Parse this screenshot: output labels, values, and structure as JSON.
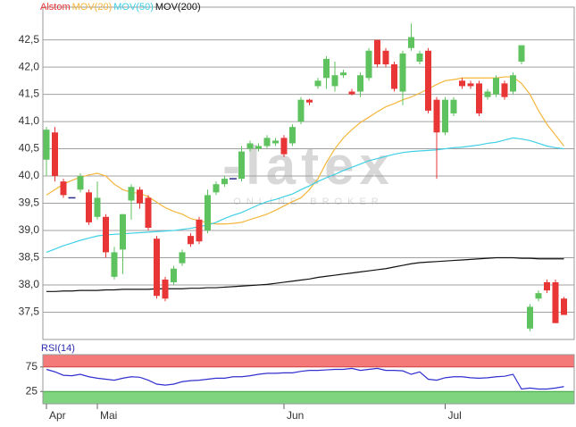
{
  "chart_data": [
    {
      "type": "candlestick",
      "name": "Alstom",
      "watermark": "-latex",
      "watermark_sub": "ONLINE BROKER",
      "up_color": "#5ec35e",
      "down_color": "#e83535",
      "doji_color": "#2a2a8a",
      "name_color": "#e83535",
      "categories": [
        "Apr",
        null,
        null,
        null,
        null,
        null,
        "Mai",
        null,
        null,
        null,
        null,
        null,
        null,
        null,
        null,
        null,
        null,
        null,
        null,
        null,
        null,
        null,
        null,
        null,
        null,
        null,
        null,
        null,
        "Jun",
        null,
        null,
        null,
        null,
        null,
        null,
        null,
        null,
        null,
        null,
        null,
        null,
        null,
        null,
        null,
        null,
        null,
        null,
        "Jul",
        null,
        null,
        null,
        null,
        null,
        null,
        null,
        null,
        null,
        null,
        null,
        null,
        null,
        null
      ],
      "open": [
        40.3,
        40.8,
        39.9,
        39.6,
        39.75,
        39.7,
        39.25,
        39.25,
        38.15,
        38.65,
        39.55,
        39.75,
        39.6,
        38.85,
        38.1,
        38.05,
        38.4,
        38.9,
        39.2,
        39.0,
        39.7,
        39.85,
        39.95,
        39.95,
        40.5,
        40.5,
        40.55,
        40.6,
        40.7,
        40.6,
        41.0,
        41.4,
        41.65,
        41.8,
        41.65,
        41.85,
        41.55,
        41.55,
        41.8,
        42.5,
        42.3,
        42.05,
        41.55,
        42.35,
        42.1,
        42.3,
        41.4,
        40.8,
        41.15,
        41.75,
        41.7,
        41.7,
        41.45,
        41.5,
        41.7,
        41.55,
        42.1,
        37.2,
        37.75,
        38.05,
        38.05,
        37.75
      ],
      "high": [
        40.9,
        40.9,
        39.95,
        39.6,
        40.05,
        39.75,
        39.9,
        39.3,
        38.7,
        39.3,
        39.85,
        39.8,
        39.65,
        38.9,
        38.15,
        38.35,
        38.65,
        38.95,
        39.25,
        39.75,
        39.9,
        40.0,
        39.95,
        40.55,
        40.65,
        40.6,
        40.75,
        40.7,
        40.75,
        40.95,
        41.45,
        41.42,
        41.8,
        42.2,
        42.1,
        41.95,
        41.6,
        41.9,
        42.35,
        42.5,
        42.35,
        42.1,
        42.3,
        42.8,
        42.3,
        42.35,
        41.45,
        41.45,
        41.45,
        41.8,
        41.75,
        41.75,
        41.6,
        41.85,
        41.75,
        41.9,
        42.4,
        37.65,
        37.9,
        38.1,
        38.1,
        37.78
      ],
      "low": [
        40.0,
        39.9,
        39.6,
        39.6,
        39.7,
        39.1,
        39.2,
        38.5,
        38.1,
        38.2,
        39.2,
        39.4,
        39.0,
        37.75,
        37.7,
        38.0,
        38.35,
        38.7,
        38.75,
        38.95,
        39.65,
        39.8,
        39.95,
        39.9,
        40.45,
        40.45,
        40.5,
        40.55,
        40.35,
        40.55,
        40.95,
        41.3,
        41.6,
        41.6,
        41.55,
        41.8,
        41.48,
        41.45,
        41.75,
        42.0,
        42.0,
        41.55,
        41.3,
        42.3,
        42.05,
        41.15,
        39.95,
        40.75,
        41.1,
        41.6,
        41.6,
        41.1,
        41.4,
        41.45,
        41.4,
        41.5,
        42.05,
        37.15,
        37.7,
        37.85,
        37.3,
        37.45
      ],
      "close": [
        40.85,
        40.0,
        39.65,
        39.6,
        40.0,
        39.15,
        39.6,
        38.6,
        38.6,
        39.3,
        39.8,
        39.5,
        39.05,
        37.8,
        37.75,
        38.3,
        38.6,
        38.75,
        38.8,
        39.65,
        39.85,
        39.95,
        39.95,
        40.45,
        40.6,
        40.55,
        40.7,
        40.65,
        40.4,
        40.9,
        41.4,
        41.35,
        41.75,
        42.15,
        41.85,
        41.9,
        41.5,
        41.85,
        42.3,
        42.05,
        42.05,
        41.6,
        42.25,
        42.55,
        42.25,
        41.2,
        40.8,
        41.4,
        41.4,
        41.65,
        41.65,
        41.15,
        41.55,
        41.8,
        41.45,
        41.85,
        42.4,
        37.6,
        37.85,
        37.9,
        37.3,
        37.45
      ],
      "series": [
        {
          "name": "MOV(20)",
          "color": "#f4b63c",
          "values": [
            39.65,
            39.75,
            39.85,
            39.92,
            39.98,
            40.02,
            40.05,
            40.0,
            39.85,
            39.75,
            39.7,
            39.68,
            39.62,
            39.52,
            39.42,
            39.35,
            39.3,
            39.22,
            39.18,
            39.14,
            39.12,
            39.12,
            39.13,
            39.15,
            39.2,
            39.25,
            39.3,
            39.37,
            39.45,
            39.53,
            39.6,
            39.75,
            39.95,
            40.25,
            40.5,
            40.7,
            40.85,
            40.98,
            41.08,
            41.18,
            41.27,
            41.33,
            41.4,
            41.45,
            41.52,
            41.6,
            41.68,
            41.75,
            41.77,
            41.8,
            41.8,
            41.8,
            41.8,
            41.8,
            41.82,
            41.82,
            41.7,
            41.5,
            41.2,
            40.95,
            40.75,
            40.55
          ]
        },
        {
          "name": "MOV(50)",
          "color": "#3fd0e6",
          "values": [
            38.6,
            38.66,
            38.72,
            38.77,
            38.82,
            38.86,
            38.9,
            38.92,
            38.93,
            38.94,
            38.95,
            38.96,
            38.97,
            38.98,
            38.99,
            39.0,
            39.02,
            39.04,
            39.07,
            39.1,
            39.15,
            39.22,
            39.28,
            39.33,
            39.4,
            39.47,
            39.53,
            39.57,
            39.62,
            39.67,
            39.75,
            39.82,
            39.9,
            39.97,
            40.03,
            40.1,
            40.16,
            40.22,
            40.28,
            40.32,
            40.36,
            40.4,
            40.43,
            40.45,
            40.46,
            40.47,
            40.48,
            40.5,
            40.52,
            40.53,
            40.55,
            40.57,
            40.6,
            40.62,
            40.66,
            40.7,
            40.68,
            40.65,
            40.6,
            40.55,
            40.52,
            40.5
          ]
        },
        {
          "name": "MOV(200)",
          "color": "#111111",
          "values": [
            37.88,
            37.88,
            37.89,
            37.89,
            37.9,
            37.9,
            37.9,
            37.91,
            37.91,
            37.92,
            37.92,
            37.92,
            37.92,
            37.93,
            37.93,
            37.93,
            37.93,
            37.94,
            37.94,
            37.95,
            37.95,
            37.96,
            37.97,
            37.98,
            37.99,
            38.0,
            38.01,
            38.03,
            38.05,
            38.07,
            38.09,
            38.11,
            38.14,
            38.16,
            38.18,
            38.2,
            38.22,
            38.24,
            38.26,
            38.28,
            38.3,
            38.33,
            38.36,
            38.39,
            38.41,
            38.42,
            38.43,
            38.44,
            38.45,
            38.46,
            38.47,
            38.48,
            38.49,
            38.5,
            38.5,
            38.5,
            38.49,
            38.49,
            38.48,
            38.48,
            38.48,
            38.48
          ]
        }
      ],
      "ylim": [
        37.0,
        43.1
      ],
      "yticks": [
        {
          "value": 37.5,
          "label": "37,5"
        },
        {
          "value": 38.0,
          "label": "38,0"
        },
        {
          "value": 38.5,
          "label": "38,5"
        },
        {
          "value": 39.0,
          "label": "39,0"
        },
        {
          "value": 39.5,
          "label": "39,5"
        },
        {
          "value": 40.0,
          "label": "40,0"
        },
        {
          "value": 40.5,
          "label": "40,5"
        },
        {
          "value": 41.0,
          "label": "41,0"
        },
        {
          "value": 41.5,
          "label": "41,5"
        },
        {
          "value": 42.0,
          "label": "42,0"
        },
        {
          "value": 42.5,
          "label": "42,5"
        }
      ],
      "grid": true
    },
    {
      "type": "line",
      "title": "RSI(14)",
      "title_color": "#2a2ab0",
      "series": [
        {
          "color": "#3030d0",
          "values": [
            70,
            65,
            58,
            57,
            60,
            55,
            52,
            50,
            48,
            52,
            55,
            54,
            48,
            40,
            38,
            40,
            45,
            47,
            48,
            50,
            52,
            52,
            55,
            55,
            57,
            60,
            62,
            62,
            63,
            63,
            66,
            68,
            68,
            69,
            70,
            70,
            72,
            68,
            70,
            72,
            68,
            68,
            67,
            60,
            65,
            50,
            48,
            53,
            55,
            55,
            53,
            52,
            53,
            55,
            56,
            60,
            30,
            32,
            30,
            30,
            32,
            35
          ]
        }
      ],
      "bands": [
        {
          "from": 75,
          "to": 100,
          "color": "#f47a7a",
          "edge": "#d04040"
        },
        {
          "from": 0,
          "to": 25,
          "color": "#7fd47f",
          "edge": "#40a040"
        }
      ],
      "ylim": [
        0,
        100
      ],
      "yticks": [
        25,
        75
      ]
    }
  ]
}
